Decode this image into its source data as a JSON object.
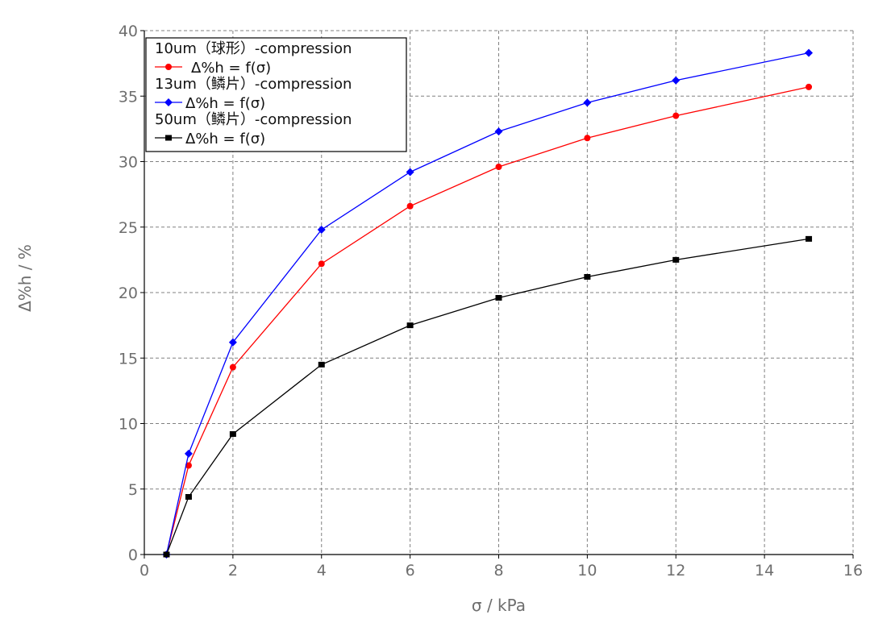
{
  "chart_data": {
    "type": "line",
    "title": "",
    "xlabel": "σ / kPa",
    "ylabel": "Δ%h / %",
    "xlim": [
      0,
      16
    ],
    "ylim": [
      0,
      40
    ],
    "xticks": [
      0,
      2,
      4,
      6,
      8,
      10,
      12,
      14,
      16
    ],
    "yticks": [
      0,
      5,
      10,
      15,
      20,
      25,
      30,
      35,
      40
    ],
    "grid": true,
    "legend_position": "top-left",
    "series": [
      {
        "name": "10um（球形）-compression",
        "sub": "Δ%h = f(σ)",
        "color": "#ff0000",
        "marker": "circle",
        "x": [
          0.5,
          1,
          2,
          4,
          6,
          8,
          10,
          12,
          15
        ],
        "y": [
          0,
          6.8,
          14.3,
          22.2,
          26.6,
          29.6,
          31.8,
          33.5,
          35.7
        ]
      },
      {
        "name": "13um（鳞片）-compression",
        "sub": "Δ%h = f(σ)",
        "color": "#0000ff",
        "marker": "diamond",
        "x": [
          0.5,
          1,
          2,
          4,
          6,
          8,
          10,
          12,
          15
        ],
        "y": [
          0,
          7.7,
          16.2,
          24.8,
          29.2,
          32.3,
          34.5,
          36.2,
          38.3
        ]
      },
      {
        "name": "50um（鳞片）-compression",
        "sub": "Δ%h = f(σ)",
        "color": "#000000",
        "marker": "square",
        "x": [
          0.5,
          1,
          2,
          4,
          6,
          8,
          10,
          12,
          15
        ],
        "y": [
          0,
          4.4,
          9.2,
          14.5,
          17.5,
          19.6,
          21.2,
          22.5,
          24.1
        ]
      }
    ]
  }
}
